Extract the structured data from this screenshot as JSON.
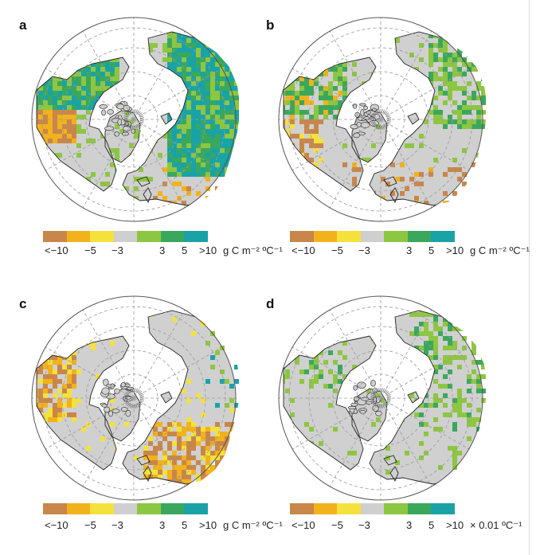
{
  "panels": [
    {
      "label": "a",
      "unit": "g C m⁻² ºC⁻¹",
      "pattern": "sens_strong"
    },
    {
      "label": "b",
      "unit": "g C m⁻² ºC⁻¹",
      "pattern": "sens_mid"
    },
    {
      "label": "c",
      "unit": "g C m⁻² ºC⁻¹",
      "pattern": "neg_europe"
    },
    {
      "label": "d",
      "unit": "× 0.01 ºC⁻¹",
      "pattern": "sparse_green"
    }
  ],
  "legend": {
    "colors": [
      "#c8864a",
      "#f2b21b",
      "#f5e13b",
      "#cfcfcf",
      "#8dc641",
      "#3aa85c",
      "#1aa3a6"
    ],
    "tick_labels": [
      "<−10",
      "−5",
      "−3",
      "3",
      "5",
      ">10"
    ]
  },
  "map_colors": {
    "ocean": "#ffffff",
    "land": "#d0d0d0",
    "coast": "#222222",
    "graticule": "#9a9a9a"
  }
}
